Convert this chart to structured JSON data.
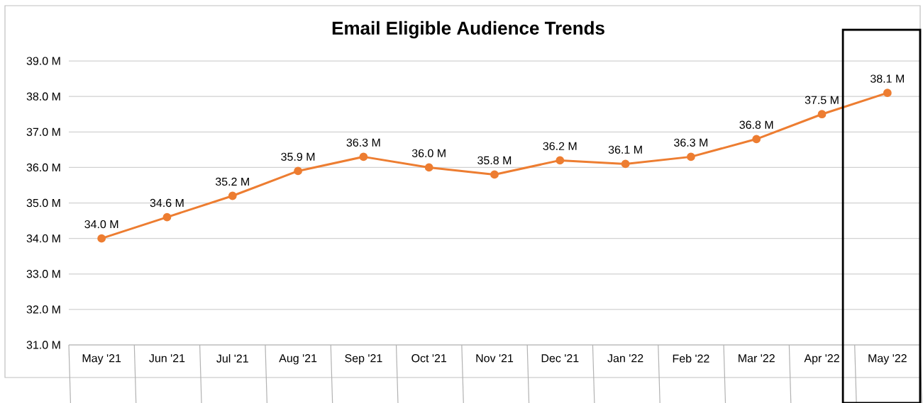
{
  "chart_data": {
    "type": "line",
    "title": "Email Eligible Audience Trends",
    "categories": [
      "May '21",
      "Jun '21",
      "Jul '21",
      "Aug '21",
      "Sep '21",
      "Oct '21",
      "Nov '21",
      "Dec '21",
      "Jan '22",
      "Feb '22",
      "Mar '22",
      "Apr '22",
      "May '22"
    ],
    "series": [
      {
        "color": "#ed7d31",
        "values": [
          34.0,
          34.6,
          35.2,
          35.9,
          36.3,
          36.0,
          35.8,
          36.2,
          36.1,
          36.3,
          36.8,
          37.5,
          38.1
        ],
        "value_labels": [
          "34.0 M",
          "34.6 M",
          "35.2 M",
          "35.9 M",
          "36.3 M",
          "36.0 M",
          "35.8 M",
          "36.2 M",
          "36.1 M",
          "36.3 M",
          "36.8 M",
          "37.5 M",
          "38.1 M"
        ]
      }
    ],
    "ylim": [
      31,
      39
    ],
    "yticks": [
      {
        "value": 31,
        "label": "31.0 M"
      },
      {
        "value": 32,
        "label": "32.0 M"
      },
      {
        "value": 33,
        "label": "33.0 M"
      },
      {
        "value": 34,
        "label": "34.0 M"
      },
      {
        "value": 35,
        "label": "35.0 M"
      },
      {
        "value": 36,
        "label": "36.0 M"
      },
      {
        "value": 37,
        "label": "37.0 M"
      },
      {
        "value": 38,
        "label": "38.0 M"
      },
      {
        "value": 39,
        "label": "39.0 M"
      }
    ],
    "grid": "y",
    "marker": "circle",
    "line_style": "solid"
  }
}
